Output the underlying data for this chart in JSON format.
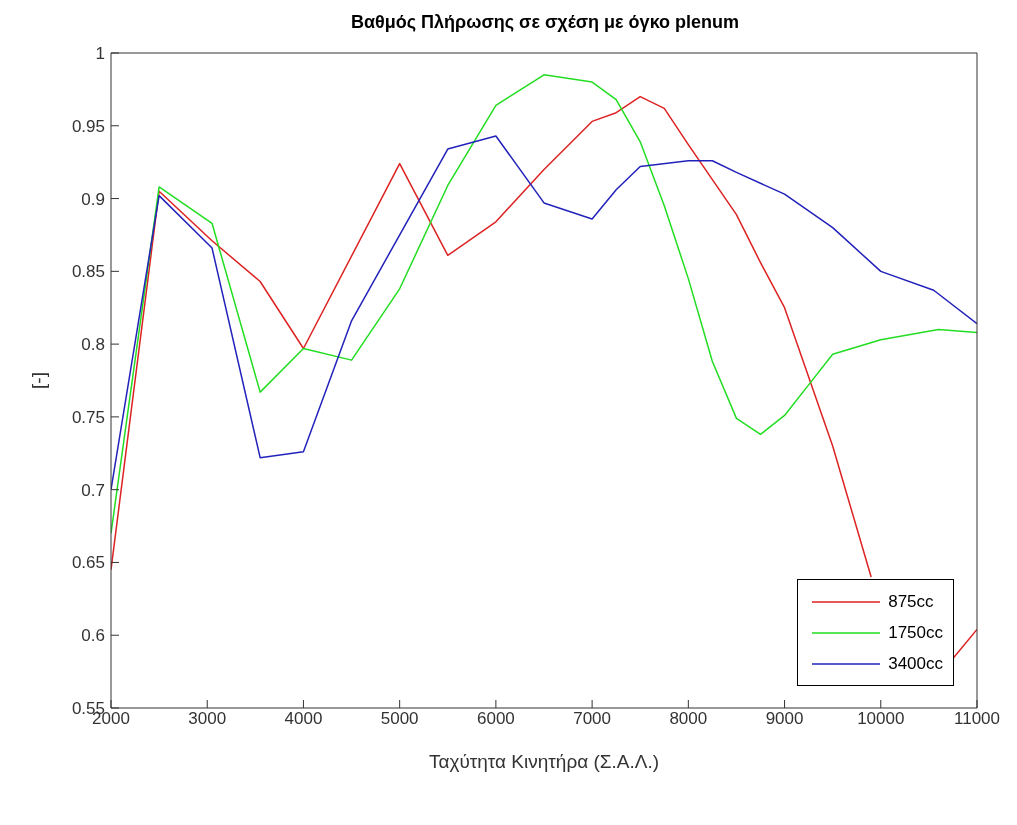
{
  "chart_data": {
    "type": "line",
    "title": "Βαθμός Πλήρωσης σε σχέση με όγκο plenum",
    "xlabel": "Ταχύτητα Κινητήρα (Σ.Α.Λ.)",
    "ylabel": "[-]",
    "xlim": [
      2000,
      11000
    ],
    "xticks": [
      2000,
      3000,
      4000,
      5000,
      6000,
      7000,
      8000,
      9000,
      10000,
      11000
    ],
    "ylim": [
      0.55,
      1
    ],
    "yticks": [
      0.55,
      0.6,
      0.65,
      0.7,
      0.75,
      0.8,
      0.85,
      0.9,
      0.95,
      1
    ],
    "grid": false,
    "legend": "bottom right",
    "series": [
      {
        "name": "875cc",
        "color": "#dd2222",
        "x": [
          2000,
          2500,
          3050,
          3550,
          4000,
          5000,
          5500,
          6000,
          6500,
          7000,
          7250,
          7500,
          7750,
          8000,
          8500,
          8750,
          9000,
          9500,
          9900,
          10000,
          10750,
          11000
        ],
        "values": [
          0.645,
          0.905,
          0.871,
          0.843,
          0.797,
          0.924,
          0.861,
          0.884,
          0.92,
          0.953,
          0.959,
          0.97,
          0.962,
          0.937,
          0.889,
          0.856,
          0.825,
          0.73,
          0.64,
          null,
          0.584,
          0.604
        ]
      },
      {
        "name": "1750cc",
        "color": "#22dd22",
        "x": [
          2000,
          2500,
          3050,
          3550,
          4000,
          4500,
          5000,
          5500,
          6000,
          6500,
          7000,
          7250,
          7500,
          7750,
          8000,
          8250,
          8500,
          8750,
          9000,
          9250,
          9500,
          10000,
          10600,
          11000
        ],
        "values": [
          0.67,
          0.908,
          0.883,
          0.767,
          0.797,
          0.789,
          0.838,
          0.909,
          0.964,
          0.985,
          0.98,
          0.968,
          0.939,
          0.895,
          0.845,
          0.788,
          0.749,
          0.738,
          0.751,
          0.772,
          0.793,
          0.803,
          0.81,
          0.808
        ]
      },
      {
        "name": "3400cc",
        "color": "#2222bb",
        "x": [
          2000,
          2500,
          3050,
          3550,
          4000,
          4500,
          5500,
          6000,
          6500,
          7000,
          7250,
          7500,
          8000,
          8250,
          8500,
          9000,
          9500,
          10000,
          10550,
          11000
        ],
        "values": [
          0.7,
          0.902,
          0.866,
          0.722,
          0.726,
          0.816,
          0.934,
          0.943,
          0.897,
          0.886,
          0.906,
          0.922,
          0.926,
          0.926,
          0.918,
          0.903,
          0.88,
          0.85,
          0.837,
          0.814
        ]
      }
    ]
  }
}
